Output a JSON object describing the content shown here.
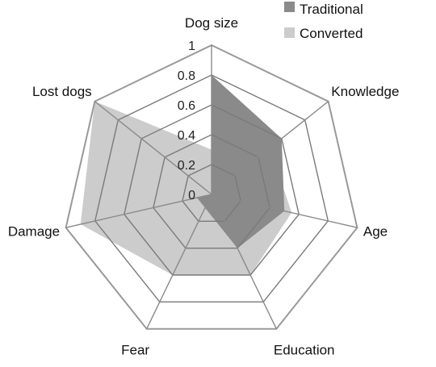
{
  "chart_data": {
    "type": "radar",
    "axes": [
      "Dog size",
      "Knowledge",
      "Age",
      "Education",
      "Fear",
      "Damage",
      "Lost dogs"
    ],
    "ticks": [
      "0",
      "0.2",
      "0.4",
      "0.6",
      "0.8",
      "1"
    ],
    "range": [
      0,
      1
    ],
    "series": [
      {
        "name": "Traditional",
        "color": "#8a8a8a",
        "values": [
          0.8,
          0.6,
          0.5,
          0.4,
          0.1,
          0.1,
          0.0
        ]
      },
      {
        "name": "Converted",
        "color": "#cccccc",
        "values": [
          0.3,
          0.5,
          0.55,
          0.6,
          0.6,
          0.9,
          1.0
        ]
      }
    ],
    "legend": {
      "position": "top-right"
    },
    "grid": true
  }
}
